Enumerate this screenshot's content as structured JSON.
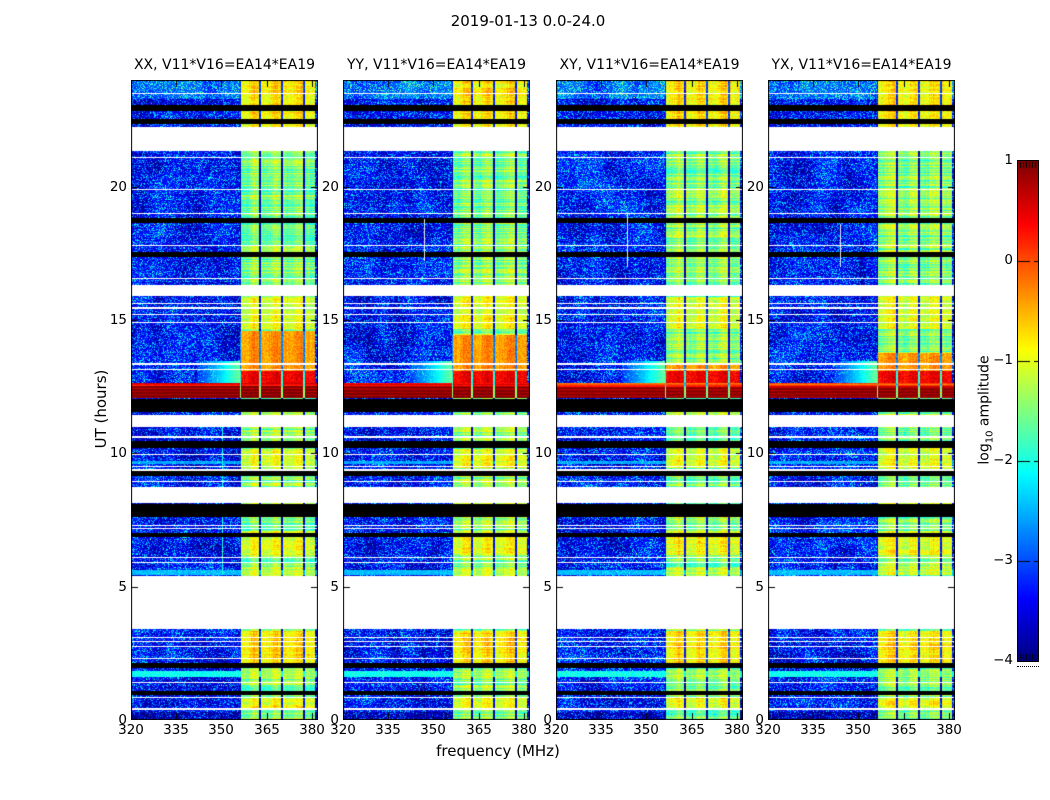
{
  "figure": {
    "title": "2019-01-13 0.0-24.0"
  },
  "chart_data": {
    "type": "heatmap",
    "description": "Dynamic spectra (frequency vs UT) of four polarization correlations for baseline V11*V16=EA14*EA19, jet colormap of log10 amplitude",
    "x": {
      "label": "frequency (MHz)",
      "range": [
        320,
        382
      ],
      "ticks": [
        320,
        335,
        350,
        365,
        380
      ]
    },
    "y": {
      "label": "UT (hours)",
      "range": [
        0,
        24
      ],
      "ticks": [
        0,
        5,
        10,
        15,
        20
      ]
    },
    "colorbar": {
      "label_parts": {
        "pre": "log",
        "sub": "10",
        "post": " amplitude"
      },
      "range": [
        -4,
        1
      ],
      "ticks": [
        1,
        0,
        -1,
        -2,
        -3,
        -4
      ],
      "colormap": "jet"
    },
    "panels": [
      {
        "title": "XX, V11*V16=EA14*EA19",
        "burst_top_ut": 14.6,
        "burst_level": 0.9,
        "seed": 11,
        "cyan_vline": {
          "freq": 350.3,
          "ut": [
            5.45,
            12.05
          ]
        },
        "white_vline": null
      },
      {
        "title": "YY, V11*V16=EA14*EA19",
        "burst_top_ut": 14.45,
        "burst_level": 0.88,
        "seed": 22,
        "cyan_vline": null,
        "white_vline": {
          "freq": 346.8,
          "ut": [
            17.2,
            18.8
          ]
        }
      },
      {
        "title": "XY, V11*V16=EA14*EA19",
        "burst_top_ut": 13.35,
        "burst_level": 0.83,
        "seed": 33,
        "cyan_vline": null,
        "white_vline": {
          "freq": 343.5,
          "ut": [
            17.0,
            19.0
          ]
        }
      },
      {
        "title": "YX, V11*V16=EA14*EA19",
        "burst_top_ut": 13.75,
        "burst_level": 0.85,
        "seed": 44,
        "cyan_vline": null,
        "white_vline": {
          "freq": 344.0,
          "ut": [
            17.0,
            18.6
          ]
        }
      }
    ],
    "features": {
      "noise_base": -3.55,
      "rfi_band": {
        "freq_start": 356.0,
        "freq_end": 381.15,
        "base_level": -1.55,
        "dividers": [
          356.3,
          362.9,
          370.2,
          377.5
        ]
      },
      "burst": {
        "ut": [
          12.08,
          12.62
        ]
      },
      "post_burst_red_ut": [
        12.62,
        13.1
      ],
      "wedge": {
        "ut": [
          12.6,
          13.45
        ],
        "freq": [
          342,
          356
        ]
      },
      "white_gaps": [
        [
          21.35,
          22.25
        ],
        [
          15.9,
          16.3
        ],
        [
          11.0,
          11.45
        ],
        [
          8.12,
          8.72
        ],
        [
          3.4,
          5.4
        ]
      ],
      "black_bands": [
        [
          22.85,
          23.08
        ],
        [
          22.35,
          22.55
        ],
        [
          18.62,
          18.82
        ],
        [
          17.35,
          17.55
        ],
        [
          11.55,
          12.05
        ],
        [
          10.2,
          10.45
        ],
        [
          9.15,
          9.35
        ],
        [
          7.6,
          8.1
        ],
        [
          6.85,
          7.02
        ],
        [
          1.95,
          2.12
        ],
        [
          0.95,
          1.1
        ]
      ],
      "white_lines": [
        23.5,
        21.1,
        19.9,
        19.0,
        17.8,
        16.55,
        15.62,
        15.45,
        15.2,
        14.9,
        13.35,
        13.15,
        10.62,
        9.95,
        9.5,
        9.38,
        8.95,
        7.3,
        7.18,
        6.1,
        5.9,
        3.1,
        2.95,
        2.75,
        2.3,
        1.4,
        0.85,
        0.42
      ],
      "cyan_rows": [
        [
          1.62,
          1.84,
          -2.05
        ],
        [
          5.44,
          5.63,
          -2.45
        ],
        [
          9.6,
          9.72,
          -2.55
        ]
      ],
      "bright_rfi_rows": [
        [
          22.25,
          23.95,
          -0.85
        ],
        [
          14.68,
          15.88,
          -1.05
        ],
        [
          9.45,
          10.18,
          -1.05
        ],
        [
          6.2,
          7.1,
          -1.0
        ],
        [
          5.42,
          5.75,
          -1.2
        ],
        [
          2.05,
          3.35,
          -0.8
        ],
        [
          1.62,
          1.92,
          -1.3
        ],
        [
          0.45,
          0.88,
          -1.0
        ]
      ]
    }
  }
}
